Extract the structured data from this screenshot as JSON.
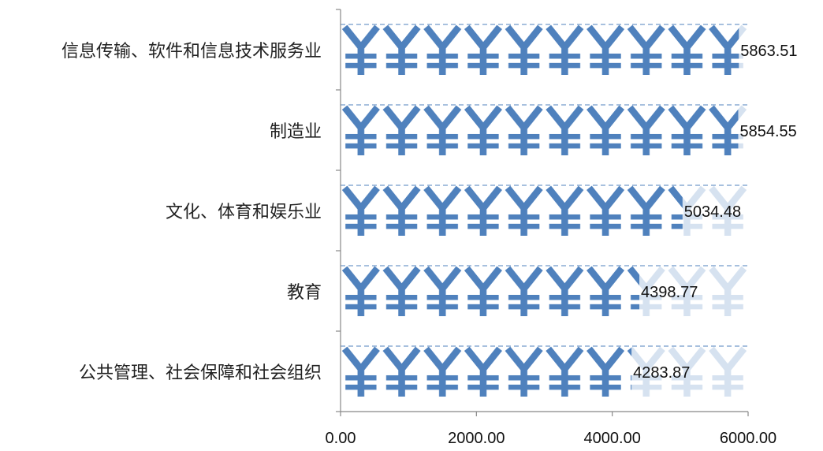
{
  "chart_data": {
    "type": "bar",
    "orientation": "horizontal",
    "categories": [
      "信息传输、软件和信息技术服务业",
      "制造业",
      "文化、体育和娱乐业",
      "教育",
      "公共管理、社会保障和社会组织"
    ],
    "values": [
      5863.51,
      5854.55,
      5034.48,
      4398.77,
      4283.87
    ],
    "value_labels": [
      "5863.51",
      "5854.55",
      "5034.48",
      "4398.77",
      "4283.87"
    ],
    "xlim": [
      0,
      6000
    ],
    "xticks": [
      0,
      2000,
      4000,
      6000
    ],
    "xtick_labels": [
      "0.00",
      "2000.00",
      "4000.00",
      "6000.00"
    ],
    "title": "",
    "xlabel": "",
    "ylabel": "",
    "legend": "none",
    "grid": false,
    "fill": "pictograph",
    "symbol": "¥",
    "symbol_unit": 600,
    "colors": {
      "bar": "#4F81BD",
      "bar_faded": "#D6E2F0",
      "axis": "#888888",
      "text": "#111111"
    }
  }
}
